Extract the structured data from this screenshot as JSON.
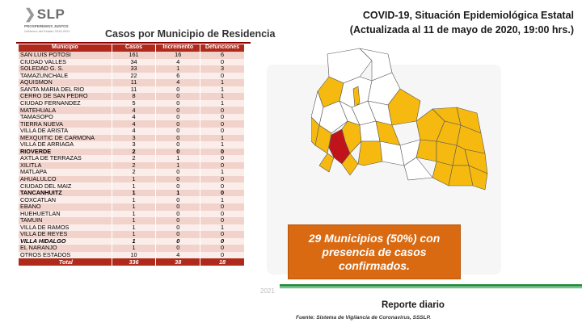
{
  "logo": {
    "text": "SLP",
    "line1": "PROSPEREMOS JUNTOS",
    "line2": "Gobierno del Estado 2015-2021"
  },
  "table": {
    "title": "Casos por Municipio de Residencia",
    "headers": [
      "Municipio",
      "Casos",
      "Incremento",
      "Defunciones"
    ],
    "rows": [
      {
        "name": "SAN LUIS POTOSI",
        "casos": "161",
        "incremento": "16",
        "defunciones": "6",
        "style": ""
      },
      {
        "name": "CIUDAD VALLES",
        "casos": "34",
        "incremento": "4",
        "defunciones": "0",
        "style": ""
      },
      {
        "name": "SOLEDAD G. S.",
        "casos": "33",
        "incremento": "1",
        "defunciones": "3",
        "style": ""
      },
      {
        "name": "TAMAZUNCHALE",
        "casos": "22",
        "incremento": "6",
        "defunciones": "0",
        "style": ""
      },
      {
        "name": "AQUISMON",
        "casos": "11",
        "incremento": "4",
        "defunciones": "1",
        "style": ""
      },
      {
        "name": "SANTA MARIA DEL RIO",
        "casos": "11",
        "incremento": "0",
        "defunciones": "1",
        "style": ""
      },
      {
        "name": "CERRO DE SAN PEDRO",
        "casos": "8",
        "incremento": "0",
        "defunciones": "1",
        "style": ""
      },
      {
        "name": "CIUDAD FERNANDEZ",
        "casos": "5",
        "incremento": "0",
        "defunciones": "1",
        "style": ""
      },
      {
        "name": "MATEHUALA",
        "casos": "4",
        "incremento": "0",
        "defunciones": "0",
        "style": ""
      },
      {
        "name": "TAMASOPO",
        "casos": "4",
        "incremento": "0",
        "defunciones": "0",
        "style": ""
      },
      {
        "name": "TIERRA NUEVA",
        "casos": "4",
        "incremento": "0",
        "defunciones": "0",
        "style": ""
      },
      {
        "name": "VILLA DE ARISTA",
        "casos": "4",
        "incremento": "0",
        "defunciones": "0",
        "style": ""
      },
      {
        "name": "MEXQUITIC DE CARMONA",
        "casos": "3",
        "incremento": "0",
        "defunciones": "1",
        "style": ""
      },
      {
        "name": "VILLA DE ARRIAGA",
        "casos": "3",
        "incremento": "0",
        "defunciones": "1",
        "style": ""
      },
      {
        "name": "RIOVERDE",
        "casos": "2",
        "incremento": "0",
        "defunciones": "0",
        "style": "bold"
      },
      {
        "name": "AXTLA DE TERRAZAS",
        "casos": "2",
        "incremento": "1",
        "defunciones": "0",
        "style": ""
      },
      {
        "name": "XILITLA",
        "casos": "2",
        "incremento": "1",
        "defunciones": "0",
        "style": ""
      },
      {
        "name": "MATLAPA",
        "casos": "2",
        "incremento": "0",
        "defunciones": "1",
        "style": ""
      },
      {
        "name": "AHUALULCO",
        "casos": "1",
        "incremento": "0",
        "defunciones": "0",
        "style": ""
      },
      {
        "name": "CIUDAD DEL MAIZ",
        "casos": "1",
        "incremento": "0",
        "defunciones": "0",
        "style": ""
      },
      {
        "name": "TANCANHUITZ",
        "casos": "1",
        "incremento": "1",
        "defunciones": "0",
        "style": "bold"
      },
      {
        "name": "COXCATLAN",
        "casos": "1",
        "incremento": "0",
        "defunciones": "1",
        "style": ""
      },
      {
        "name": "EBANO",
        "casos": "1",
        "incremento": "0",
        "defunciones": "0",
        "style": ""
      },
      {
        "name": "HUEHUETLAN",
        "casos": "1",
        "incremento": "0",
        "defunciones": "0",
        "style": ""
      },
      {
        "name": "TAMUIN",
        "casos": "1",
        "incremento": "0",
        "defunciones": "0",
        "style": ""
      },
      {
        "name": "VILLA DE RAMOS",
        "casos": "1",
        "incremento": "0",
        "defunciones": "1",
        "style": ""
      },
      {
        "name": "VILLA DE REYES",
        "casos": "1",
        "incremento": "0",
        "defunciones": "0",
        "style": ""
      },
      {
        "name": "VILLA HIDALGO",
        "casos": "1",
        "incremento": "0",
        "defunciones": "0",
        "style": "italic"
      },
      {
        "name": "EL NARANJO",
        "casos": "1",
        "incremento": "0",
        "defunciones": "0",
        "style": ""
      },
      {
        "name": "OTROS ESTADOS",
        "casos": "10",
        "incremento": "4",
        "defunciones": "0",
        "style": ""
      }
    ],
    "total": {
      "name": "Total",
      "casos": "336",
      "incremento": "38",
      "defunciones": "18"
    }
  },
  "title_line1": "COVID-19, Situación Epidemiológica Estatal",
  "title_line2": "(Actualizada al 11 de mayo de 2020, 19:00 hrs.)",
  "map_colors": {
    "affected": "#f5b90f",
    "capital": "#c0141a",
    "unaffected": "#ffffff",
    "border": "#555555"
  },
  "callout": {
    "line1": "29 Municipios (50%) con",
    "line2": "presencia de casos",
    "line3": "confirmados."
  },
  "year_fragment": "2021",
  "report_label": "Reporte diario",
  "source": "Fuente: Sistema de Vigilancia de Coronavirus, SSSLP."
}
